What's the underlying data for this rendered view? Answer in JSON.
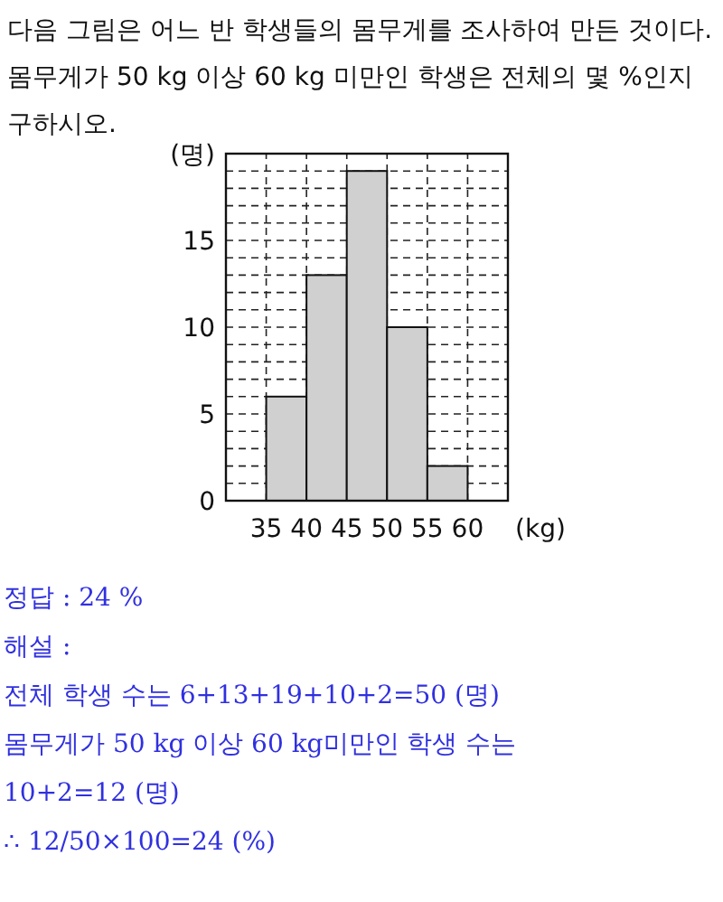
{
  "chart_data": {
    "type": "histogram",
    "title": "다음 그림은 어느 반 학생들의 몸무게를 조사하여 만든 것이다. 몸무게가 50 kg 이상 60 kg 미만인 학생은 전체의 몇 %인지 구하시오.",
    "ylabel": "(명)",
    "xlabel": "(kg)",
    "bins": [
      35,
      40,
      45,
      50,
      55,
      60
    ],
    "values": [
      6,
      13,
      19,
      10,
      2
    ],
    "color": "#d0d0d0",
    "xlim": [
      30,
      65
    ],
    "xticks": [
      35,
      40,
      45,
      50,
      55,
      60
    ],
    "ylim": [
      0,
      20
    ],
    "yticks": [
      0,
      {
        "value": 1,
        "label": null
      },
      {
        "value": 2,
        "label": null
      },
      {
        "value": 3,
        "label": null
      },
      {
        "value": 4,
        "label": null
      },
      5,
      {
        "value": 6,
        "label": null
      },
      {
        "value": 7,
        "label": null
      },
      {
        "value": 8,
        "label": null
      },
      {
        "value": 9,
        "label": null
      },
      10,
      {
        "value": 11,
        "label": null
      },
      {
        "value": 12,
        "label": null
      },
      {
        "value": 13,
        "label": null
      },
      {
        "value": 14,
        "label": null
      },
      15,
      {
        "value": 16,
        "label": null
      },
      {
        "value": 17,
        "label": null
      },
      {
        "value": 18,
        "label": null
      },
      {
        "value": 19,
        "label": null
      }
    ],
    "grid": true,
    "annotations": [
      "정답 : 24 %",
      "해설 :",
      "전체 학생 수는 6+13+19+10+2=50 (명)",
      "몸무게가 50 kg 이상 60 kg미만인 학생 수는",
      "10+2=12 (명)",
      "∴ 12/50×100=24 (%)"
    ]
  }
}
